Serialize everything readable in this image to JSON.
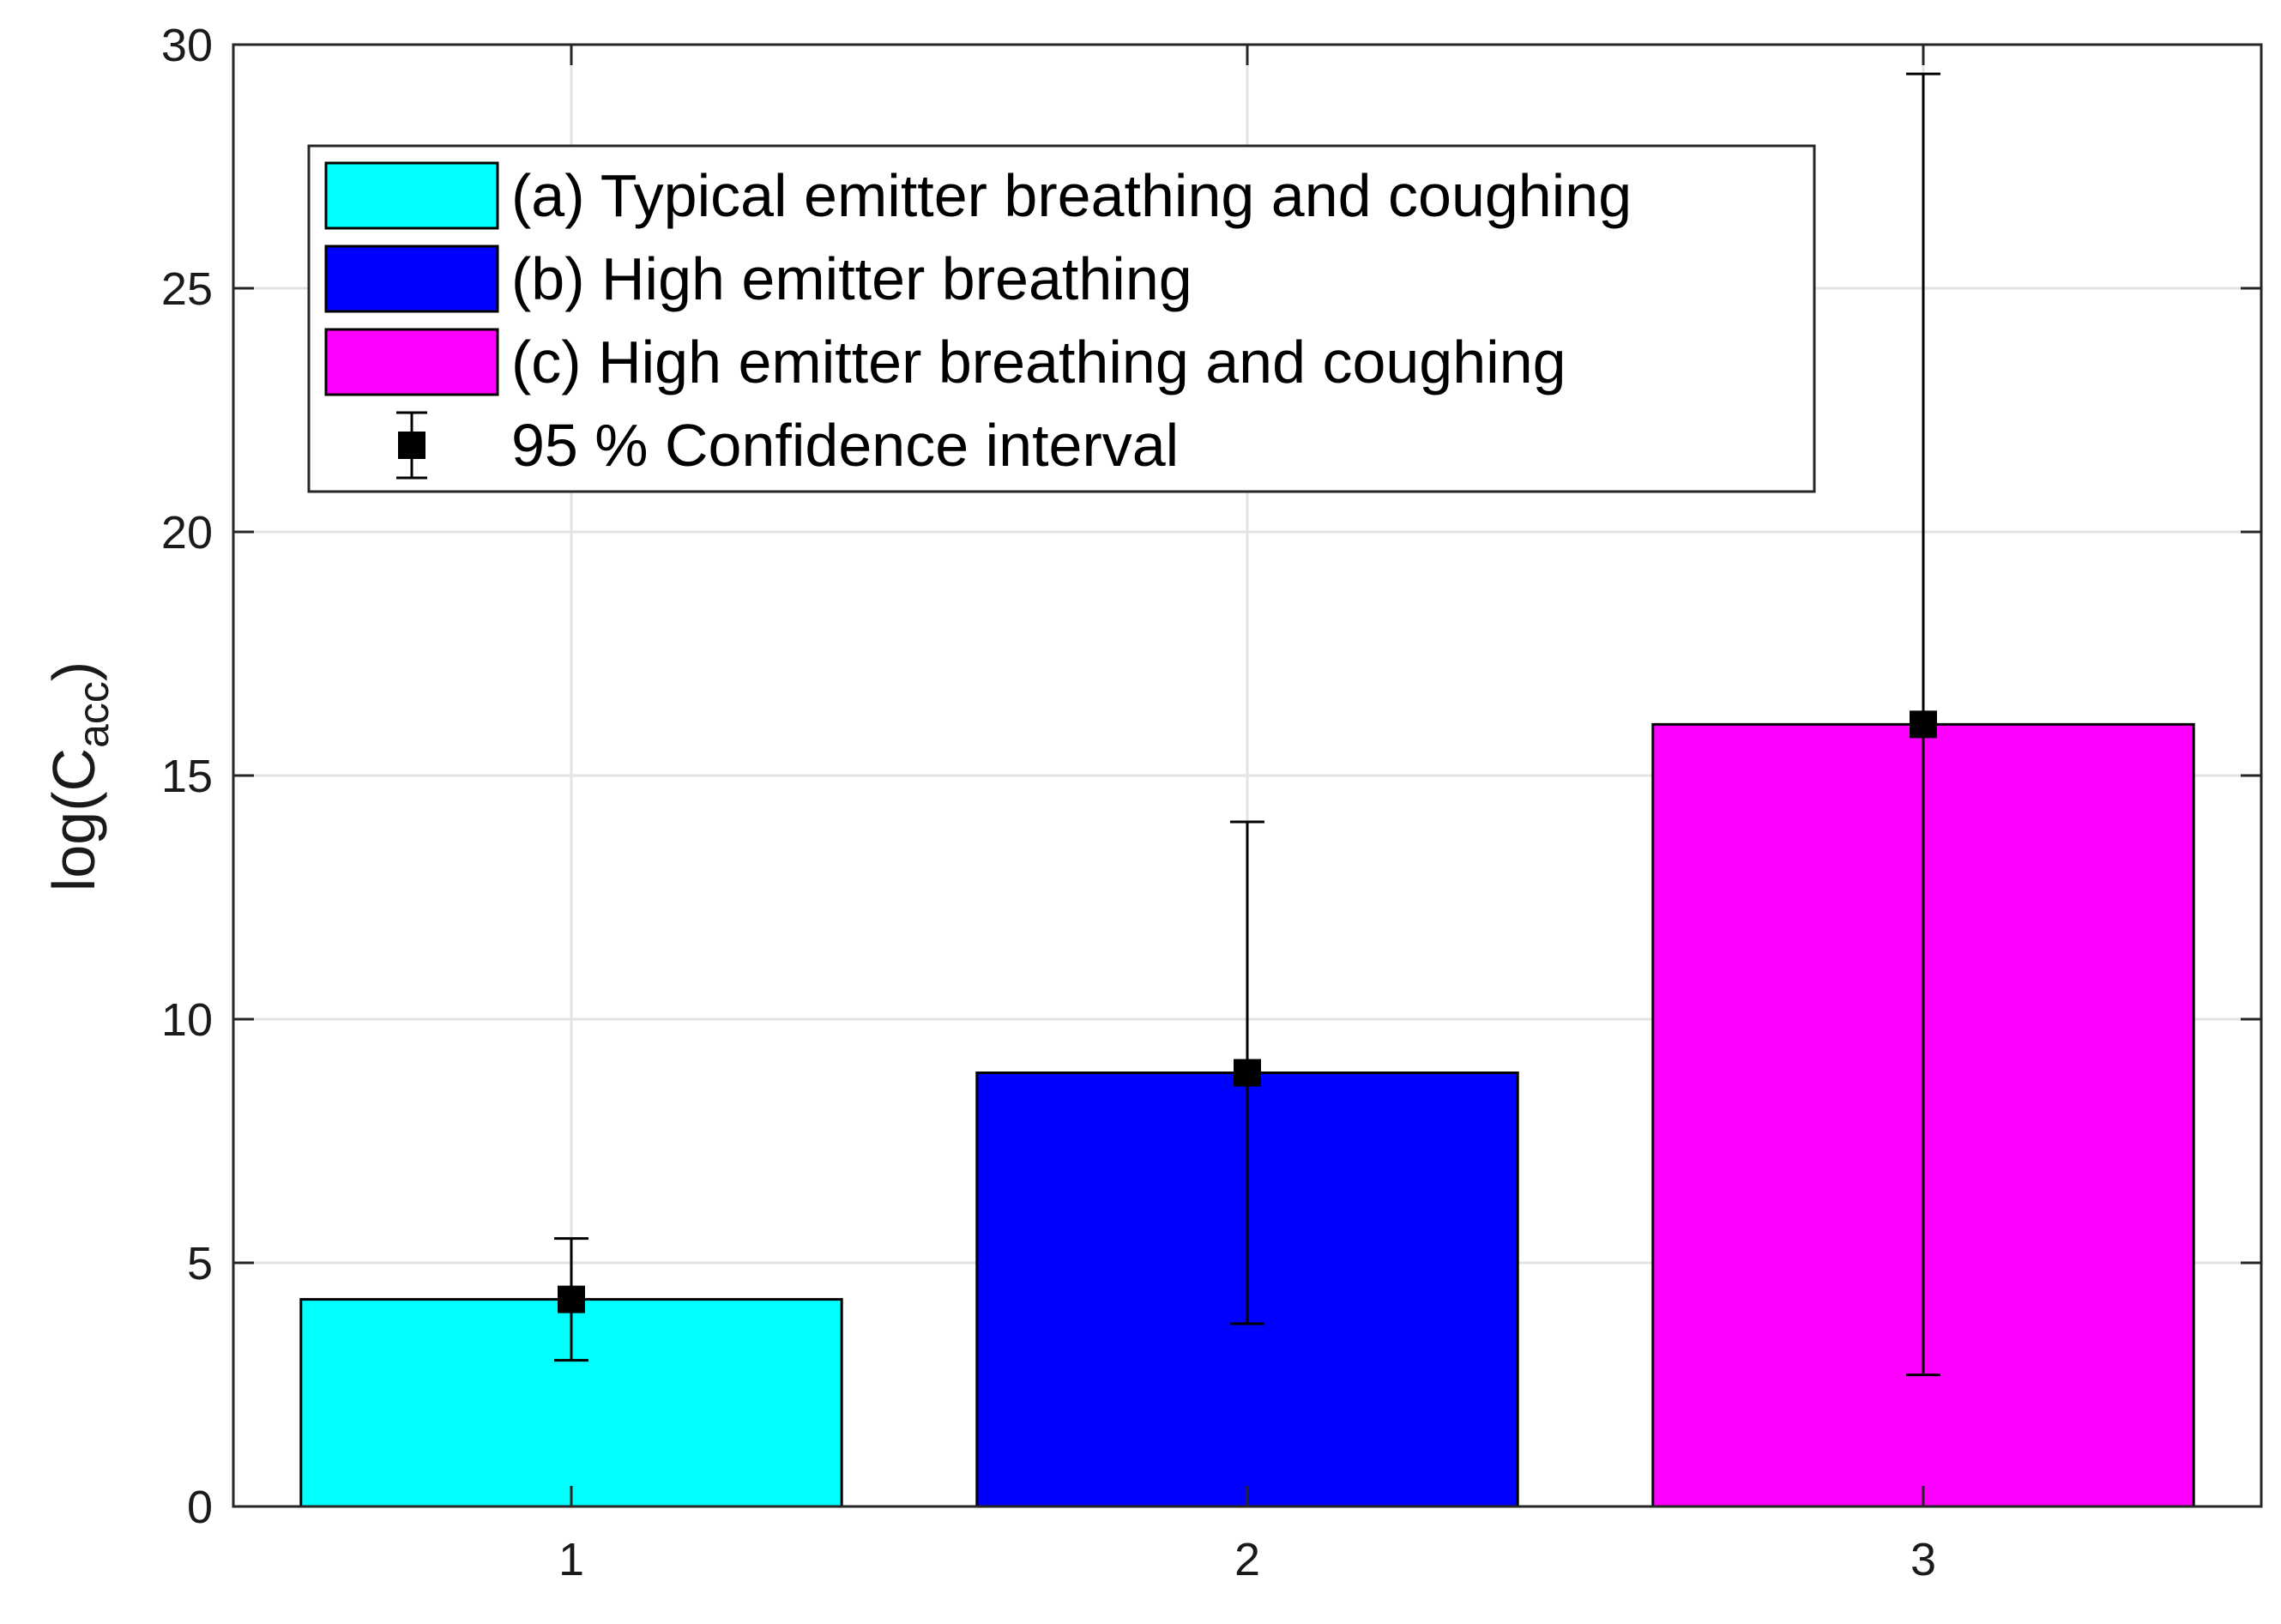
{
  "chart_data": {
    "type": "bar",
    "title": "",
    "xlabel": "",
    "ylabel": {
      "base": "log(C",
      "subscript": "acc",
      "close": ")"
    },
    "categories": [
      "1",
      "2",
      "3"
    ],
    "values": [
      4.25,
      8.9,
      16.05
    ],
    "error_bars": {
      "lower": [
        3.0,
        3.75,
        2.7
      ],
      "upper": [
        5.5,
        14.05,
        29.4
      ]
    },
    "bar_colors": [
      "#00ffff",
      "#0000ff",
      "#ff00ff"
    ],
    "ylim": [
      0,
      30
    ],
    "yticks": [
      "0",
      "5",
      "10",
      "15",
      "20",
      "25",
      "30"
    ],
    "grid": true,
    "legend_position": "top-left",
    "legend": [
      {
        "label": "(a) Typical emitter breathing and coughing",
        "kind": "patch",
        "color": "#00ffff"
      },
      {
        "label": "(b) High emitter breathing",
        "kind": "patch",
        "color": "#0000ff"
      },
      {
        "label": "(c) High emitter breathing and coughing",
        "kind": "patch",
        "color": "#ff00ff"
      },
      {
        "label": "95 % Confidence interval",
        "kind": "errorbar",
        "color": "#000000"
      }
    ]
  }
}
